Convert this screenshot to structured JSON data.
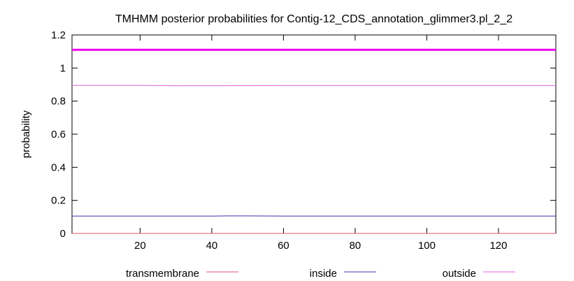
{
  "chart_data": {
    "type": "line",
    "title": "TMHMM posterior probabilities for Contig-12_CDS_annotation_glimmer3.pl_2_2",
    "xlabel": "",
    "ylabel": "probability",
    "xlim": [
      1,
      136
    ],
    "ylim": [
      0,
      1.2
    ],
    "xticks": [
      20,
      40,
      60,
      80,
      100,
      120
    ],
    "yticks": [
      0,
      0.2,
      0.4,
      0.6,
      0.8,
      1,
      1.2
    ],
    "ytick_labels": [
      "0",
      "0.2",
      "0.4",
      "0.6",
      "0.8",
      "1",
      "1.2"
    ],
    "grid": false,
    "legend_position": "bottom",
    "series": [
      {
        "name": "transmembrane",
        "color": "#e0506a",
        "x": [
          1,
          136
        ],
        "y": [
          0,
          0
        ]
      },
      {
        "name": "inside",
        "color": "#3535a8",
        "x": [
          1,
          40,
          45,
          49,
          60,
          136
        ],
        "y": [
          0.105,
          0.105,
          0.106,
          0.106,
          0.105,
          0.105
        ]
      },
      {
        "name": "outside",
        "color": "#e060e0",
        "x": [
          1,
          20,
          25,
          29,
          60,
          136
        ],
        "y": [
          0.895,
          0.895,
          0.894,
          0.893,
          0.894,
          0.894
        ]
      }
    ],
    "reference_line": {
      "y": 1.11,
      "color": "#ee00ee"
    }
  }
}
